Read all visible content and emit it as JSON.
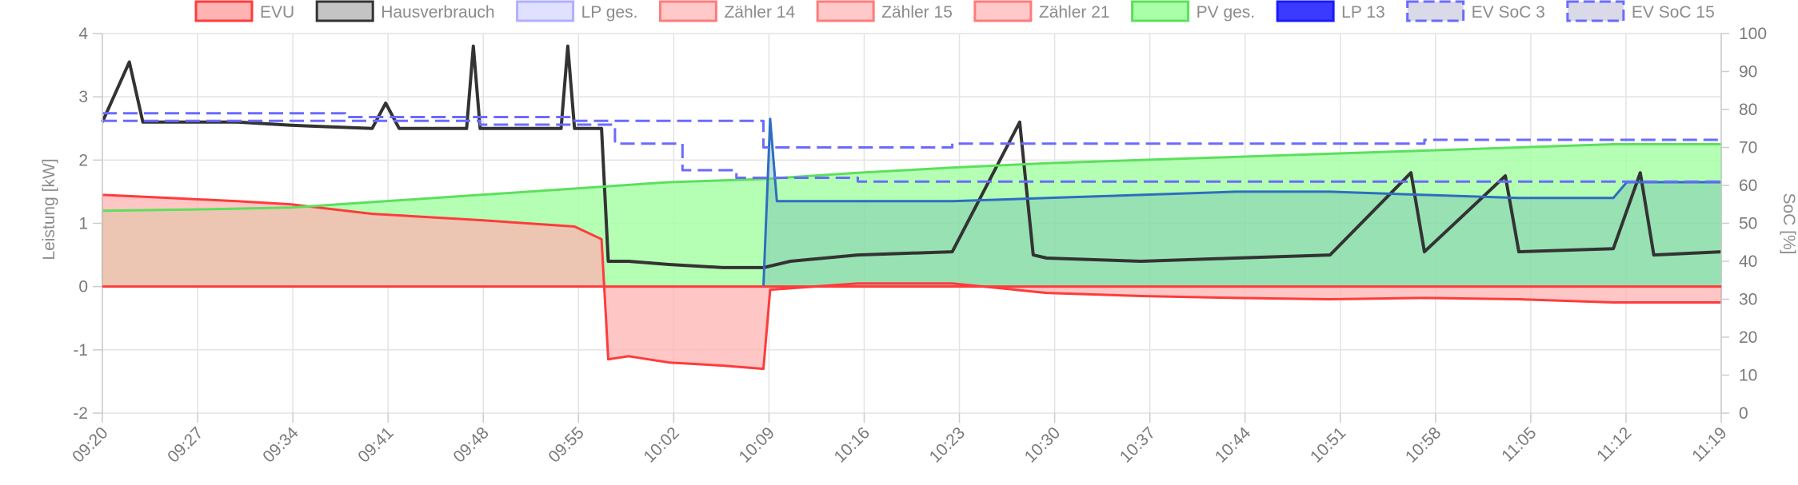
{
  "chart_data": {
    "type": "line",
    "xlabel": "",
    "ylabel": "Leistung [kW]",
    "y2label": "SoC [%]",
    "ylim": [
      -2,
      4
    ],
    "y2lim": [
      0,
      100
    ],
    "x_ticks": [
      "09:20",
      "09:27",
      "09:34",
      "09:41",
      "09:48",
      "09:55",
      "10:02",
      "10:09",
      "10:16",
      "10:23",
      "10:30",
      "10:37",
      "10:44",
      "10:51",
      "10:58",
      "11:05",
      "11:12",
      "11:19"
    ],
    "y_ticks": [
      "4",
      "3",
      "2",
      "1",
      "0",
      "-1",
      "-2"
    ],
    "y2_ticks": [
      "100",
      "90",
      "80",
      "70",
      "60",
      "50",
      "40",
      "30",
      "20",
      "10",
      "0"
    ],
    "grid": true,
    "legend_position": "top",
    "x_minutes_note": "",
    "series": [
      {
        "name": "EVU",
        "color": "#ff3b3b",
        "fill": "#ffb3b3",
        "axis": "left",
        "style": "area",
        "points": [
          [
            "09:20",
            1.45
          ],
          [
            "09:25",
            1.4
          ],
          [
            "09:30",
            1.35
          ],
          [
            "09:34",
            1.3
          ],
          [
            "09:40",
            1.15
          ],
          [
            "09:48",
            1.05
          ],
          [
            "09:55",
            0.95
          ],
          [
            "09:57",
            0.75
          ],
          [
            "09:57.5",
            -1.15
          ],
          [
            "09:59",
            -1.1
          ],
          [
            "10:02",
            -1.2
          ],
          [
            "10:06",
            -1.25
          ],
          [
            "10:09",
            -1.3
          ],
          [
            "10:09.5",
            -0.05
          ],
          [
            "10:16",
            0.05
          ],
          [
            "10:23",
            0.05
          ],
          [
            "10:30",
            -0.1
          ],
          [
            "10:37",
            -0.15
          ],
          [
            "10:44",
            -0.18
          ],
          [
            "10:51",
            -0.2
          ],
          [
            "10:58",
            -0.18
          ],
          [
            "11:05",
            -0.2
          ],
          [
            "11:12",
            -0.25
          ],
          [
            "11:20",
            -0.25
          ]
        ]
      },
      {
        "name": "Hausverbrauch",
        "color": "#333333",
        "fill": "#c4c4c4",
        "axis": "left",
        "style": "line",
        "points": [
          [
            "09:20",
            2.6
          ],
          [
            "09:22",
            3.55
          ],
          [
            "09:23",
            2.6
          ],
          [
            "09:30",
            2.6
          ],
          [
            "09:34",
            2.55
          ],
          [
            "09:40",
            2.5
          ],
          [
            "09:41",
            2.9
          ],
          [
            "09:42",
            2.5
          ],
          [
            "09:47",
            2.5
          ],
          [
            "09:47.5",
            3.8
          ],
          [
            "09:48",
            2.5
          ],
          [
            "09:54",
            2.5
          ],
          [
            "09:54.5",
            3.8
          ],
          [
            "09:55",
            2.5
          ],
          [
            "09:57",
            2.5
          ],
          [
            "09:57.5",
            0.4
          ],
          [
            "09:59",
            0.4
          ],
          [
            "10:02",
            0.35
          ],
          [
            "10:06",
            0.3
          ],
          [
            "10:09",
            0.3
          ],
          [
            "10:11",
            0.4
          ],
          [
            "10:16",
            0.5
          ],
          [
            "10:23",
            0.55
          ],
          [
            "10:28",
            2.6
          ],
          [
            "10:29",
            0.5
          ],
          [
            "10:30",
            0.45
          ],
          [
            "10:37",
            0.4
          ],
          [
            "10:44",
            0.45
          ],
          [
            "10:51",
            0.5
          ],
          [
            "10:57",
            1.8
          ],
          [
            "10:58",
            0.55
          ],
          [
            "11:04",
            1.75
          ],
          [
            "11:05",
            0.55
          ],
          [
            "11:12",
            0.6
          ],
          [
            "11:14",
            1.8
          ],
          [
            "11:15",
            0.5
          ],
          [
            "11:20",
            0.55
          ]
        ]
      },
      {
        "name": "LP ges.",
        "color": "#b0b0ff",
        "fill": "#e0e0ff",
        "axis": "left",
        "style": "line",
        "points": []
      },
      {
        "name": "Zähler 14",
        "color": "#ff7b7b",
        "fill": "#ffc9c9",
        "axis": "left",
        "style": "line",
        "points": []
      },
      {
        "name": "Zähler 15",
        "color": "#ff7b7b",
        "fill": "#ffc9c9",
        "axis": "left",
        "style": "line",
        "points": []
      },
      {
        "name": "Zähler 21",
        "color": "#ff7b7b",
        "fill": "#ffc9c9",
        "axis": "left",
        "style": "line",
        "points": []
      },
      {
        "name": "PV ges.",
        "color": "#5ce05c",
        "fill": "#a8ffa8",
        "axis": "left",
        "style": "area",
        "points": [
          [
            "09:20",
            1.2
          ],
          [
            "09:27",
            1.22
          ],
          [
            "09:34",
            1.25
          ],
          [
            "09:41",
            1.35
          ],
          [
            "09:48",
            1.45
          ],
          [
            "09:55",
            1.55
          ],
          [
            "10:02",
            1.65
          ],
          [
            "10:09",
            1.7
          ],
          [
            "10:16",
            1.8
          ],
          [
            "10:23",
            1.88
          ],
          [
            "10:30",
            1.95
          ],
          [
            "10:37",
            2.0
          ],
          [
            "10:44",
            2.05
          ],
          [
            "10:51",
            2.1
          ],
          [
            "10:58",
            2.15
          ],
          [
            "11:05",
            2.2
          ],
          [
            "11:12",
            2.25
          ],
          [
            "11:20",
            2.25
          ]
        ]
      },
      {
        "name": "LP 13",
        "color": "#1a1aff",
        "fill": "#3b3bff",
        "axis": "left",
        "style": "line",
        "points": [
          [
            "10:09",
            0.0
          ],
          [
            "10:09.5",
            2.65
          ],
          [
            "10:10",
            1.35
          ],
          [
            "10:16",
            1.35
          ],
          [
            "10:23",
            1.35
          ],
          [
            "10:30",
            1.4
          ],
          [
            "10:37",
            1.45
          ],
          [
            "10:44",
            1.5
          ],
          [
            "10:51",
            1.5
          ],
          [
            "10:58",
            1.45
          ],
          [
            "11:05",
            1.4
          ],
          [
            "11:12",
            1.4
          ],
          [
            "11:13",
            1.65
          ],
          [
            "11:20",
            1.65
          ]
        ]
      },
      {
        "name": "EV SoC 3",
        "color": "#6b6bff",
        "fill": "#d9d9e8",
        "axis": "right",
        "style": "dashed",
        "points": [
          [
            "09:20",
            79
          ],
          [
            "09:38",
            79
          ],
          [
            "09:38",
            78
          ],
          [
            "09:55",
            78
          ],
          [
            "09:55",
            77
          ],
          [
            "10:09",
            77
          ],
          [
            "10:09",
            70
          ],
          [
            "10:23",
            70
          ],
          [
            "10:23",
            71
          ],
          [
            "10:58",
            71
          ],
          [
            "10:58",
            72
          ],
          [
            "11:20",
            72
          ]
        ]
      },
      {
        "name": "EV SoC 15",
        "color": "#6b6bff",
        "fill": "#d9d9e8",
        "axis": "right",
        "style": "dashed",
        "points": [
          [
            "09:20",
            77
          ],
          [
            "09:48",
            77
          ],
          [
            "09:48",
            76
          ],
          [
            "09:58",
            76
          ],
          [
            "09:58",
            71
          ],
          [
            "10:03",
            71
          ],
          [
            "10:03",
            64
          ],
          [
            "10:07",
            64
          ],
          [
            "10:07",
            62
          ],
          [
            "10:16",
            62
          ],
          [
            "10:16",
            61
          ],
          [
            "11:20",
            61
          ]
        ]
      }
    ]
  }
}
